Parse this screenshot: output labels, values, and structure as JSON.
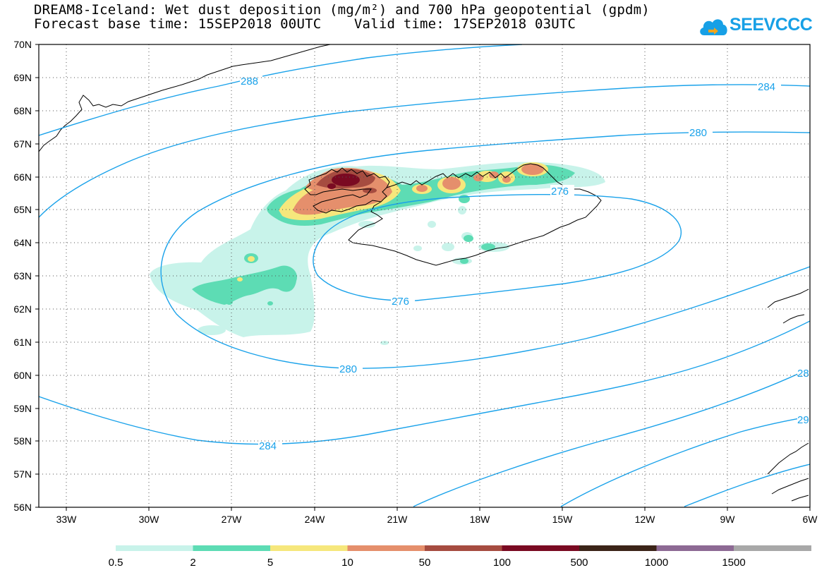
{
  "header": {
    "title_line1": "DREAM8-Iceland: Wet dust deposition (mg/m²) and 700 hPa geopotential (gpdm)",
    "title_line2": "Forecast base time: 15SEP2018 00UTC    Valid time: 17SEP2018 03UTC"
  },
  "logo": {
    "text": "SEEVCCC",
    "icon": "cloud-logo-icon",
    "color": "#17a0e6"
  },
  "map": {
    "lat_labels": [
      "70N",
      "69N",
      "68N",
      "67N",
      "66N",
      "65N",
      "64N",
      "63N",
      "62N",
      "61N",
      "60N",
      "59N",
      "58N",
      "57N",
      "56N"
    ],
    "lon_labels": [
      "33W",
      "30W",
      "27W",
      "24W",
      "21W",
      "18W",
      "15W",
      "12W",
      "9W",
      "6W"
    ],
    "contour_labels": [
      "288",
      "284",
      "280",
      "276",
      "276",
      "280",
      "284",
      "28",
      "29"
    ],
    "contour_color": "#1aa2ea"
  },
  "colorbar": {
    "colors": [
      "#c8f3ea",
      "#5ddcb4",
      "#f6e77c",
      "#e58f6c",
      "#a64c40",
      "#7a0a22",
      "#3b2418",
      "#8d6a94",
      "#a8a8a8"
    ],
    "labels": [
      "0.5",
      "2",
      "5",
      "10",
      "50",
      "100",
      "500",
      "1000",
      "1500"
    ]
  }
}
